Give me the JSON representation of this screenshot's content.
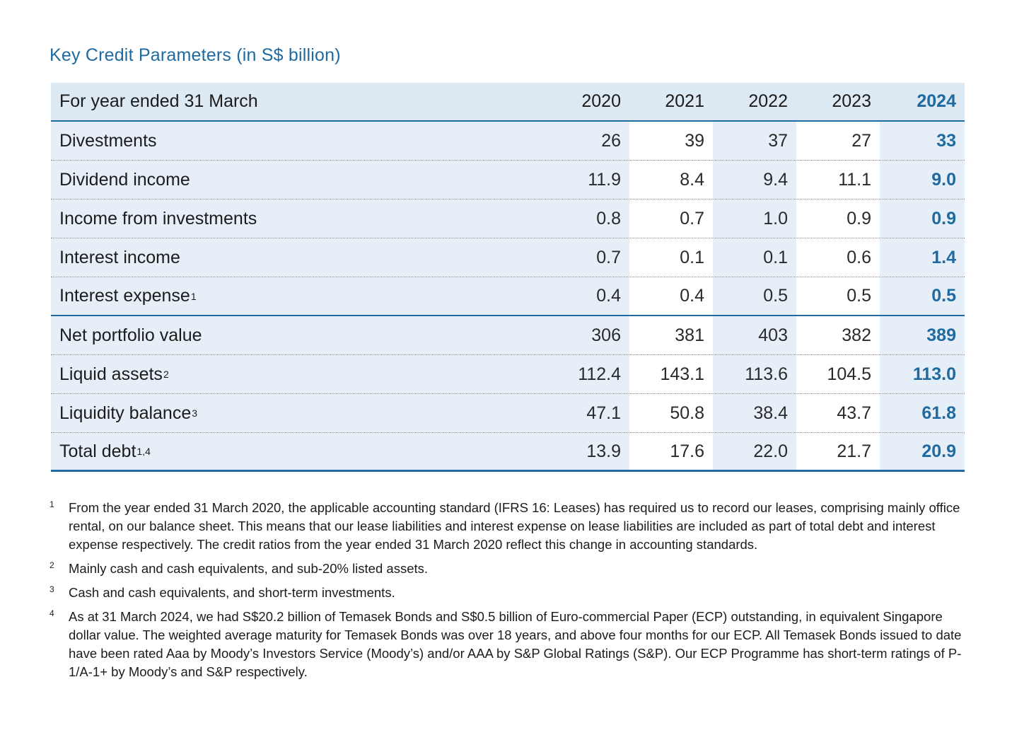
{
  "title": "Key Credit Parameters (in S$ billion)",
  "table": {
    "header": {
      "label": "For year ended 31 March",
      "years": [
        "2020",
        "2021",
        "2022",
        "2023",
        "2024"
      ]
    },
    "rows": [
      {
        "label": "Divestments",
        "sup": "",
        "values": [
          "26",
          "39",
          "37",
          "27",
          "33"
        ]
      },
      {
        "label": "Dividend income",
        "sup": "",
        "values": [
          "11.9",
          "8.4",
          "9.4",
          "11.1",
          "9.0"
        ]
      },
      {
        "label": "Income from investments",
        "sup": "",
        "values": [
          "0.8",
          "0.7",
          "1.0",
          "0.9",
          "0.9"
        ]
      },
      {
        "label": "Interest income",
        "sup": "",
        "values": [
          "0.7",
          "0.1",
          "0.1",
          "0.6",
          "1.4"
        ]
      },
      {
        "label": "Interest expense",
        "sup": "1",
        "values": [
          "0.4",
          "0.4",
          "0.5",
          "0.5",
          "0.5"
        ]
      },
      {
        "label": "Net portfolio value",
        "sup": "",
        "values": [
          "306",
          "381",
          "403",
          "382",
          "389"
        ]
      },
      {
        "label": "Liquid assets",
        "sup": "2",
        "values": [
          "112.4",
          "143.1",
          "113.6",
          "104.5",
          "113.0"
        ]
      },
      {
        "label": "Liquidity balance",
        "sup": "3",
        "values": [
          "47.1",
          "50.8",
          "38.4",
          "43.7",
          "61.8"
        ]
      },
      {
        "label": "Total debt",
        "sup": "1,4",
        "values": [
          "13.9",
          "17.6",
          "22.0",
          "21.7",
          "20.9"
        ]
      }
    ]
  },
  "footnotes": [
    {
      "num": "1",
      "text": "From the year ended 31 March 2020, the applicable accounting standard (IFRS 16: Leases) has required us to record our leases, comprising mainly office rental, on our balance sheet. This means that our lease liabilities and interest expense on lease liabilities are included as part of total debt and interest expense respectively. The credit ratios from the year ended 31 March 2020 reflect this change in accounting standards."
    },
    {
      "num": "2",
      "text": "Mainly cash and cash equivalents, and sub-20% listed assets."
    },
    {
      "num": "3",
      "text": "Cash and cash equivalents, and short-term investments."
    },
    {
      "num": "4",
      "text": "As at 31 March 2024, we had S$20.2 billion of Temasek Bonds and S$0.5 billion of Euro-commercial Paper (ECP) outstanding, in equivalent Singapore dollar value. The weighted average maturity for Temasek Bonds was over 18 years, and above four months for our ECP. All Temasek Bonds issued to date have been rated Aaa by Moody’s Investors Service (Moody’s) and/or AAA by S&P Global Ratings (S&P). Our ECP Programme has short-term ratings of P-1/A-1+ by Moody’s and S&P respectively."
    }
  ],
  "colors": {
    "accent": "#1f6aa0",
    "band": "#e6eff7",
    "header": "#dde9f3"
  }
}
